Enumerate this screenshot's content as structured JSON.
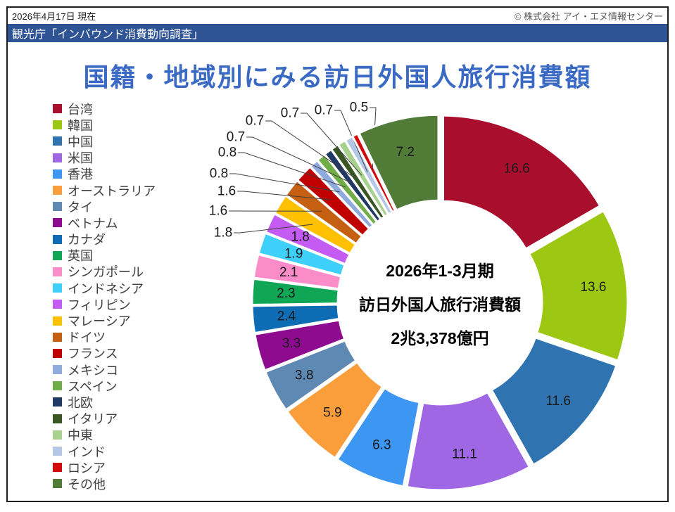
{
  "header": {
    "date_text": "2026年4月17日 現在",
    "copyright_text": "© 株式会社 アイ・エヌ情報センター",
    "source_text": "観光庁「インバウンド消費動向調査」",
    "source_bar_color": "#2F5496"
  },
  "title": {
    "text": "国籍・地域別にみる訪日外国人旅行消費額",
    "color": "#3B6AC4"
  },
  "chart_data": {
    "type": "pie",
    "subtype": "exploded-doughnut",
    "unit": "percent-share",
    "legend_position": "left",
    "center_label_lines": [
      "2026年1-3月期",
      "訪日外国人旅行消費額",
      "2兆3,378億円"
    ],
    "segments": [
      {
        "label": "台湾",
        "value": 16.6,
        "color": "#A90E2D"
      },
      {
        "label": "韓国",
        "value": 13.6,
        "color": "#9CC813"
      },
      {
        "label": "中国",
        "value": 11.6,
        "color": "#2F74B0"
      },
      {
        "label": "米国",
        "value": 11.1,
        "color": "#A067E5"
      },
      {
        "label": "香港",
        "value": 6.3,
        "color": "#3D96F2"
      },
      {
        "label": "オーストラリア",
        "value": 5.9,
        "color": "#FA9E3C"
      },
      {
        "label": "タイ",
        "value": 3.8,
        "color": "#5E89B3"
      },
      {
        "label": "ベトナム",
        "value": 3.3,
        "color": "#8E0A8E"
      },
      {
        "label": "カナダ",
        "value": 2.4,
        "color": "#0E6CB4"
      },
      {
        "label": "英国",
        "value": 2.3,
        "color": "#0FA655"
      },
      {
        "label": "シンガポール",
        "value": 2.1,
        "color": "#F98CC9"
      },
      {
        "label": "インドネシア",
        "value": 1.9,
        "color": "#3FD0FA"
      },
      {
        "label": "フィリピン",
        "value": 1.8,
        "color": "#C45CF3"
      },
      {
        "label": "マレーシア",
        "value": 1.8,
        "color": "#FFC000"
      },
      {
        "label": "ドイツ",
        "value": 1.6,
        "color": "#C55F11"
      },
      {
        "label": "フランス",
        "value": 1.6,
        "color": "#C00000"
      },
      {
        "label": "メキシコ",
        "value": 0.8,
        "color": "#8FAADC"
      },
      {
        "label": "スペイン",
        "value": 0.8,
        "color": "#70AD47"
      },
      {
        "label": "北欧",
        "value": 0.7,
        "color": "#203864"
      },
      {
        "label": "イタリア",
        "value": 0.7,
        "color": "#385723"
      },
      {
        "label": "中東",
        "value": 0.7,
        "color": "#A9D18E"
      },
      {
        "label": "インド",
        "value": 0.7,
        "color": "#B4C7E7"
      },
      {
        "label": "ロシア",
        "value": 0.5,
        "color": "#D20A0A"
      },
      {
        "label": "その他",
        "value": 7.2,
        "color": "#507C38"
      }
    ]
  }
}
